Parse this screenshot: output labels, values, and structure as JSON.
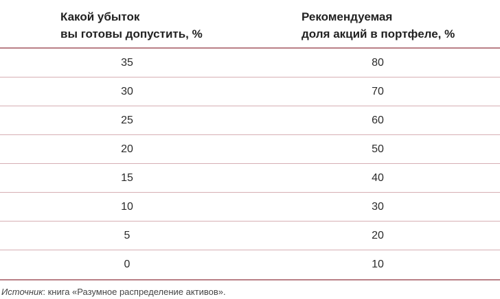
{
  "table": {
    "columns": [
      {
        "line1": "Какой убыток",
        "line2": "вы готовы допустить, %"
      },
      {
        "line1": "Рекомендуемая",
        "line2": "доля акций в портфеле, %"
      }
    ],
    "rows": [
      [
        "35",
        "80"
      ],
      [
        "30",
        "70"
      ],
      [
        "25",
        "60"
      ],
      [
        "20",
        "50"
      ],
      [
        "15",
        "40"
      ],
      [
        "10",
        "30"
      ],
      [
        "5",
        "20"
      ],
      [
        "0",
        "10"
      ]
    ]
  },
  "source": {
    "label": "Источник",
    "text": ": книга «Разумное распределение активов»."
  },
  "colors": {
    "rule": "#b97f86",
    "row_divider": "#d6aeb3"
  }
}
